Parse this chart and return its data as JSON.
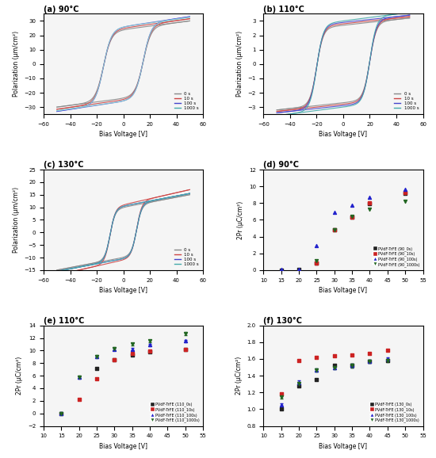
{
  "panels": {
    "a": {
      "title": "(a) 90°C",
      "xlim": [
        -60,
        60
      ],
      "ylim": [
        -35,
        35
      ],
      "ylabel": "Polarization (μm/cm²)",
      "xlabel": "Bias Voltage [V]"
    },
    "b": {
      "title": "(b) 110°C",
      "xlim": [
        -60,
        60
      ],
      "ylim": [
        -3.5,
        3.5
      ],
      "ylabel": "Polarization (μm/cm²)",
      "xlabel": "Bias Voltage [V]"
    },
    "c": {
      "title": "(c) 130°C",
      "xlim": [
        -60,
        60
      ],
      "ylim": [
        -15,
        25
      ],
      "ylabel": "Polarization (μm/cm²)",
      "xlabel": "Bias Voltage [V]"
    },
    "d": {
      "title": "(d) 90°C",
      "xlim": [
        10,
        55
      ],
      "ylim": [
        0,
        12
      ],
      "ylabel": "2Pr (μC/cm²)",
      "xlabel": "Bias Voltage [V]"
    },
    "e": {
      "title": "(e) 110°C",
      "xlim": [
        10,
        55
      ],
      "ylim": [
        -2,
        14
      ],
      "ylabel": "2Pr (μC/cm²)",
      "xlabel": "Bias Voltage [V]"
    },
    "f": {
      "title": "(f) 130°C",
      "xlim": [
        10,
        55
      ],
      "ylim": [
        0.8,
        2.0
      ],
      "ylabel": "2Pr (μC/cm²)",
      "xlabel": "Bias Voltage [V]"
    }
  },
  "hysteresis_colors": {
    "0s": "#888888",
    "10s": "#cc4444",
    "100s": "#4444cc",
    "1000s": "#44aaaa"
  },
  "scatter_colors": {
    "0s": "#222222",
    "10s": "#cc2222",
    "100s": "#2222cc",
    "1000s": "#226622"
  },
  "legend_labels_abc": [
    "0 s",
    "10 s",
    "100 s",
    "1000 s"
  ],
  "legend_labels_d": [
    "PVdF-TrFE (90_0s)",
    "PVdF-TrFE (90_10s)",
    "PVdF-TrFE (90_100s)",
    "PVdF-TrFE (90_1000s)"
  ],
  "legend_labels_e": [
    "PVdF-TrFE (110_0s)",
    "PVdF-TrFE (110_10s)",
    "PVdF-TrFE (110_100s)",
    "PVdF-TrFE (110_1000s)"
  ],
  "legend_labels_f": [
    "PVdF-TrFE (130_0s)",
    "PVdF-TrFE (130_10s)",
    "PVdF-TrFE (130_100s)",
    "PVdF-TrFE (130_1000s)"
  ],
  "scatter_d": {
    "0s": {
      "x": [
        15,
        20,
        25,
        30,
        35,
        40,
        50
      ],
      "y": [
        0.0,
        0.05,
        0.8,
        4.8,
        6.3,
        7.9,
        9.2
      ]
    },
    "10s": {
      "x": [
        25,
        30,
        35,
        40,
        50
      ],
      "y": [
        0.85,
        4.8,
        6.3,
        8.0,
        9.3
      ]
    },
    "100s": {
      "x": [
        15,
        20,
        25,
        30,
        35,
        40,
        50
      ],
      "y": [
        0.05,
        0.05,
        2.9,
        6.9,
        7.7,
        8.7,
        9.6
      ]
    },
    "1000s": {
      "x": [
        25,
        30,
        35,
        40,
        50
      ],
      "y": [
        1.1,
        4.85,
        6.4,
        7.3,
        8.2
      ]
    }
  },
  "scatter_e": {
    "0s": {
      "x": [
        15,
        25,
        30,
        35,
        40,
        50
      ],
      "y": [
        0.0,
        7.2,
        8.5,
        9.3,
        9.8,
        10.2
      ]
    },
    "10s": {
      "x": [
        20,
        25,
        30,
        35,
        40,
        50
      ],
      "y": [
        2.2,
        5.5,
        8.5,
        9.5,
        9.9,
        10.2
      ]
    },
    "100s": {
      "x": [
        15,
        20,
        25,
        30,
        35,
        40,
        50
      ],
      "y": [
        0.0,
        5.7,
        9.0,
        10.2,
        10.2,
        10.9,
        11.5
      ]
    },
    "1000s": {
      "x": [
        15,
        20,
        25,
        30,
        35,
        40,
        50
      ],
      "y": [
        0.0,
        5.8,
        9.1,
        10.3,
        11.0,
        11.5,
        12.7
      ]
    }
  },
  "scatter_f": {
    "0s": {
      "x": [
        15,
        20,
        25,
        30,
        35,
        40,
        45
      ],
      "y": [
        1.0,
        1.28,
        1.35,
        1.52,
        1.52,
        1.57,
        1.58
      ]
    },
    "10s": {
      "x": [
        15,
        20,
        25,
        30,
        35,
        40,
        45
      ],
      "y": [
        1.18,
        1.58,
        1.62,
        1.64,
        1.65,
        1.67,
        1.7
      ]
    },
    "100s": {
      "x": [
        15,
        20,
        25,
        30,
        35,
        40,
        45
      ],
      "y": [
        1.05,
        1.32,
        1.47,
        1.5,
        1.52,
        1.57,
        1.6
      ]
    },
    "1000s": {
      "x": [
        15,
        20,
        25,
        30,
        35,
        40,
        45
      ],
      "y": [
        1.15,
        1.31,
        1.47,
        1.5,
        1.52,
        1.57,
        1.58
      ]
    }
  },
  "background_color": "#f5f5f5"
}
